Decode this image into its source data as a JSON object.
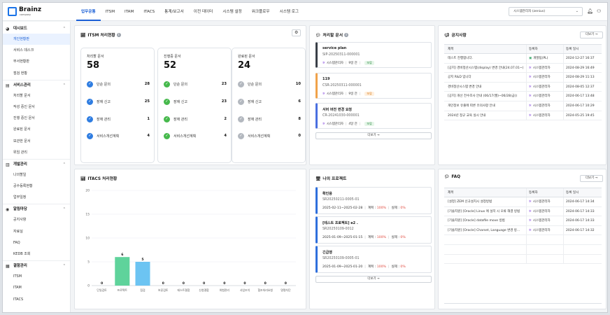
{
  "logo": {
    "name": "Brainz",
    "sub": "company"
  },
  "nav": [
    "업무공통",
    "ITSM",
    "ITAM",
    "ITACS",
    "통계/보고서",
    "이전 데이터",
    "시스템 설정",
    "워크플로우",
    "시스템 로그"
  ],
  "tenant": "시스템관리자 (zenius)",
  "notification_count": "",
  "sidebar": [
    {
      "group": "대시보드",
      "icon": "dashboard-icon",
      "items": [
        "개인현황판",
        "서비스 데스크",
        "부서현황판",
        "점검 현황"
      ]
    },
    {
      "group": "서비스관리",
      "icon": "service-icon",
      "items": [
        "처리할 문서",
        "작성 중인 문서",
        "진행 중인 문서",
        "완료된 문서",
        "보관한 문서",
        "위임 관리"
      ]
    },
    {
      "group": "개발관리",
      "icon": "dev-icon",
      "items": [
        "나의할일",
        "공수등록현황",
        "업무일정"
      ]
    },
    {
      "group": "알림마당",
      "icon": "notice-icon",
      "items": [
        "공지사항",
        "자료실",
        "FAQ",
        "KEDB 조회"
      ]
    },
    {
      "group": "결함관리",
      "icon": "defect-icon",
      "items": [
        "ITSM",
        "ITAM",
        "ITACS"
      ]
    }
  ],
  "itsm": {
    "title": "ITSM 처리현황",
    "cards": [
      {
        "label": "처리할 문서",
        "total": "58",
        "state": "blue",
        "rows": [
          {
            "label": "단순 문의",
            "value": "28"
          },
          {
            "label": "장애 신고",
            "value": "25"
          },
          {
            "label": "장애 관리",
            "value": "1"
          },
          {
            "label": "서비스개선계획",
            "value": "4"
          }
        ]
      },
      {
        "label": "진행중 문서",
        "total": "52",
        "state": "green",
        "rows": [
          {
            "label": "단순 문의",
            "value": "23"
          },
          {
            "label": "장애 신고",
            "value": "23"
          },
          {
            "label": "장애 관리",
            "value": "2"
          },
          {
            "label": "서비스개선계획",
            "value": "4"
          }
        ]
      },
      {
        "label": "완료된 문서",
        "total": "24",
        "state": "gray",
        "rows": [
          {
            "label": "단순 문의",
            "value": "10"
          },
          {
            "label": "장애 신고",
            "value": "6"
          },
          {
            "label": "장애 관리",
            "value": "8"
          },
          {
            "label": "서비스개선계획",
            "value": "0"
          }
        ]
      }
    ]
  },
  "requests": {
    "title": "처리할 문서",
    "items": [
      {
        "title": "service plan",
        "id": "SIP-20250311-000001",
        "user": "시스템관리자",
        "time": "9일 전",
        "status": "보류",
        "color": "#3a3f47",
        "badge": "green"
      },
      {
        "title": "119",
        "id": "CSR-20250311-000001",
        "user": "시스템관리자",
        "time": "9일 전",
        "status": "보류",
        "color": "#f0a24a",
        "badge": "orange"
      },
      {
        "title": "서버 버전 변경 요청",
        "id": "CR-20241030-000001",
        "user": "시스템관리자",
        "time": "4달 전",
        "status": "보류",
        "color": "#4a6fe0",
        "badge": "green"
      }
    ],
    "more": "더보기 →"
  },
  "notice": {
    "title": "공지사항",
    "more": "더보기 →",
    "headers": [
      "제목",
      "등록자",
      "등록 일시"
    ],
    "rows": [
      {
        "title": "테스트 진행합니다.",
        "author": "개발팀(PL)",
        "date": "2024-12-27 16:37"
      },
      {
        "title": "[공지] 경비정산시스템(display) 변경 안내(24.07.01~)",
        "author": "시스템관리자",
        "date": "2024-08-29 16:49"
      },
      {
        "title": "공지 R&D 입니다",
        "author": "시스템관리자",
        "date": "2024-08-29 11:13"
      },
      {
        "title": "경비정산시스템 변경 안내",
        "author": "시스템관리자",
        "date": "2024-08-05 12:37"
      },
      {
        "title": "[공지] 개선 전수조사 안내 (06/17(월)~06/28(금))",
        "author": "시스템관리자",
        "date": "2024-06-17 13:48"
      },
      {
        "title": "개인정보 유출에 따른 유의사항 안내",
        "author": "시스템관리자",
        "date": "2024-06-17 10:29"
      },
      {
        "title": "2024년 정규 교육 실시 안내",
        "author": "시스템관리자",
        "date": "2024-05-25 19:45"
      }
    ]
  },
  "itacs_chart_title": "ITACS 처리현황",
  "chart_data": {
    "type": "bar",
    "categories": [
      "단일검토",
      "프로젝트",
      "점검",
      "보류검토",
      "테스트결합",
      "신청결합",
      "위험관리",
      "사업조치",
      "협조처리요청",
      "명명차단"
    ],
    "values": [
      0,
      6,
      5,
      0,
      0,
      0,
      0,
      0,
      0,
      0
    ],
    "ylim": [
      0,
      20
    ],
    "yticks": [
      0,
      5,
      10,
      15,
      20
    ],
    "colors": [
      "#cfd4da",
      "#5fd39b",
      "#6cc4f2",
      "#cfd4da",
      "#cfd4da",
      "#cfd4da",
      "#cfd4da",
      "#cfd4da",
      "#cfd4da",
      "#cfd4da"
    ]
  },
  "projects": {
    "title": "나의 프로젝트",
    "items": [
      {
        "title": "확인용",
        "id": "SR20250211-0005-01",
        "period": "2025-02-11~2025-02-28",
        "plan_label": "계획 :",
        "plan": "100%",
        "actual_label": "실제 :",
        "actual": "0%"
      },
      {
        "title": "[테스트 프로젝트] e2 .",
        "id": "SR20250109-0012",
        "period": "2025-01-09~2025-01-15",
        "plan_label": "계획 :",
        "plan": "100%",
        "actual_label": "실제 :",
        "actual": "0%"
      },
      {
        "title": "긴급행",
        "id": "SR20250109-0005-01",
        "period": "2025-01-09~2025-01-20",
        "plan_label": "계획 :",
        "plan": "100%",
        "actual_label": "실제 :",
        "actual": "0%"
      }
    ],
    "more": "더보기 →"
  },
  "faq": {
    "title": "FAQ",
    "more": "더보기 →",
    "headers": [
      "제목",
      "등록자",
      "등록 일시"
    ],
    "rows": [
      {
        "title": "[설정] ZEM 신규설치시 설정방법",
        "author": "시스템관리자",
        "date": "2024-06-17 14:34"
      },
      {
        "title": "[기술지원] [Oracle] Linux 에 설치 시 오류 해결 방법",
        "author": "시스템관리자",
        "date": "2024-06-17 14:33"
      },
      {
        "title": "[기술지원] [Oracle] datafile move 방법",
        "author": "시스템관리자",
        "date": "2024-06-17 14:33"
      },
      {
        "title": "[기술지원] [Oracle] Charset, Language 변경 방...",
        "author": "시스템관리자",
        "date": "2024-06-17 14:32"
      }
    ]
  }
}
